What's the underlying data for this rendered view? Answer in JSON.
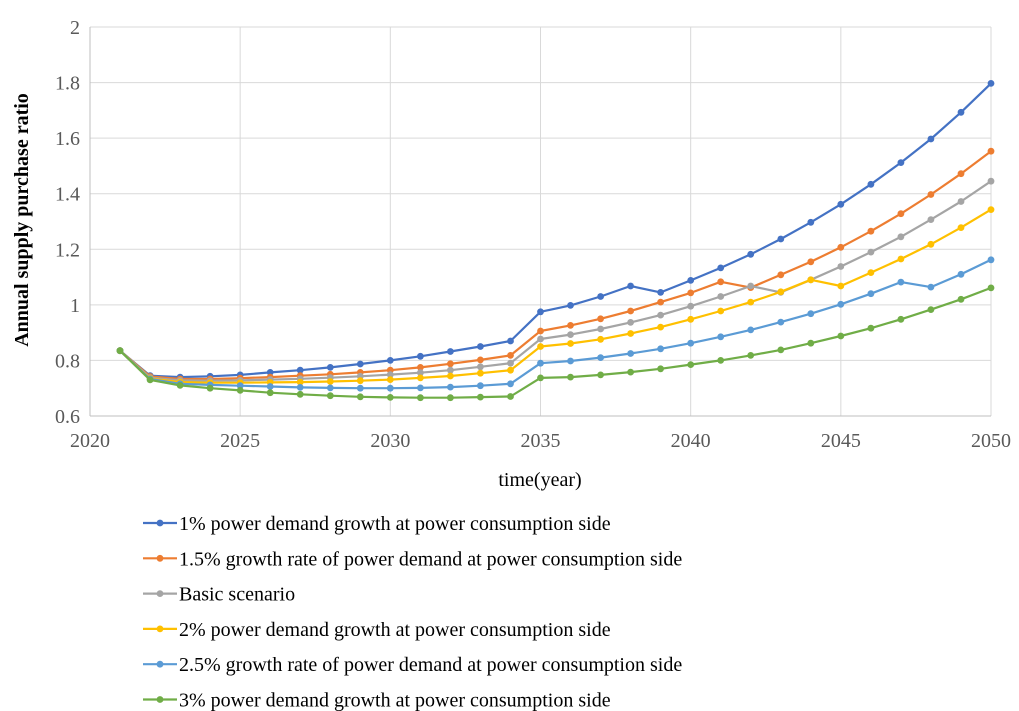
{
  "chart_data": {
    "type": "line",
    "title": "",
    "xlabel": "time(year)",
    "ylabel": "Annual supply purchase ratio",
    "xlim": [
      2020,
      2050
    ],
    "ylim": [
      0.6,
      2
    ],
    "x_ticks": [
      2020,
      2025,
      2030,
      2035,
      2040,
      2045,
      2050
    ],
    "y_ticks": [
      0.6,
      0.8,
      1,
      1.2,
      1.4,
      1.6,
      1.8,
      2
    ],
    "x_tick_labels": [
      "2020",
      "2025",
      "2030",
      "2035",
      "2040",
      "2045",
      "2050"
    ],
    "y_tick_labels": [
      "0.6",
      "0.8",
      "1",
      "1.2",
      "1.4",
      "1.6",
      "1.8",
      "2"
    ],
    "grid": true,
    "legend_position": "bottom",
    "x": [
      2021,
      2022,
      2023,
      2024,
      2025,
      2026,
      2027,
      2028,
      2029,
      2030,
      2031,
      2032,
      2033,
      2034,
      2035,
      2036,
      2037,
      2038,
      2039,
      2040,
      2041,
      2042,
      2043,
      2044,
      2045,
      2046,
      2047,
      2048,
      2049,
      2050
    ],
    "series": [
      {
        "name": "1% power demand growth at power consumption side",
        "color": "#4472C4",
        "values": [
          0.835,
          0.745,
          0.74,
          0.743,
          0.748,
          0.757,
          0.765,
          0.775,
          0.787,
          0.8,
          0.815,
          0.832,
          0.85,
          0.87,
          0.975,
          0.998,
          1.03,
          1.068,
          1.045,
          1.088,
          1.133,
          1.182,
          1.237,
          1.297,
          1.362,
          1.434,
          1.512,
          1.597,
          1.693,
          1.797
        ]
      },
      {
        "name": "1.5% growth rate of power demand at power consumption side",
        "color": "#ED7D31",
        "values": [
          0.835,
          0.742,
          0.733,
          0.733,
          0.736,
          0.74,
          0.745,
          0.75,
          0.757,
          0.765,
          0.775,
          0.788,
          0.802,
          0.818,
          0.906,
          0.926,
          0.95,
          0.978,
          1.01,
          1.043,
          1.083,
          1.062,
          1.108,
          1.155,
          1.207,
          1.265,
          1.328,
          1.397,
          1.472,
          1.553
        ]
      },
      {
        "name": "Basic scenario",
        "color": "#A5A5A5",
        "values": [
          0.835,
          0.738,
          0.728,
          0.727,
          0.728,
          0.731,
          0.734,
          0.738,
          0.743,
          0.749,
          0.756,
          0.765,
          0.777,
          0.79,
          0.877,
          0.893,
          0.913,
          0.937,
          0.963,
          0.995,
          1.03,
          1.068,
          1.045,
          1.09,
          1.138,
          1.19,
          1.245,
          1.307,
          1.372,
          1.445
        ]
      },
      {
        "name": "2% power demand growth at power consumption side",
        "color": "#FFC000",
        "values": [
          0.835,
          0.735,
          0.722,
          0.72,
          0.72,
          0.721,
          0.722,
          0.724,
          0.727,
          0.731,
          0.737,
          0.744,
          0.754,
          0.765,
          0.85,
          0.861,
          0.876,
          0.897,
          0.92,
          0.948,
          0.978,
          1.01,
          1.047,
          1.09,
          1.068,
          1.116,
          1.165,
          1.218,
          1.278,
          1.343
        ]
      },
      {
        "name": "2.5% growth rate of power demand at power consumption side",
        "color": "#5B9BD5",
        "values": [
          0.835,
          0.733,
          0.716,
          0.712,
          0.709,
          0.706,
          0.703,
          0.701,
          0.7,
          0.7,
          0.701,
          0.704,
          0.709,
          0.716,
          0.79,
          0.798,
          0.81,
          0.825,
          0.842,
          0.862,
          0.885,
          0.91,
          0.938,
          0.968,
          1.002,
          1.04,
          1.082,
          1.064,
          1.11,
          1.162
        ]
      },
      {
        "name": "3% power demand growth at power consumption side",
        "color": "#70AD47",
        "values": [
          0.835,
          0.73,
          0.71,
          0.7,
          0.692,
          0.684,
          0.678,
          0.673,
          0.669,
          0.667,
          0.666,
          0.666,
          0.668,
          0.67,
          0.737,
          0.74,
          0.748,
          0.758,
          0.77,
          0.785,
          0.8,
          0.818,
          0.838,
          0.862,
          0.888,
          0.916,
          0.948,
          0.983,
          1.02,
          1.061
        ]
      }
    ]
  }
}
